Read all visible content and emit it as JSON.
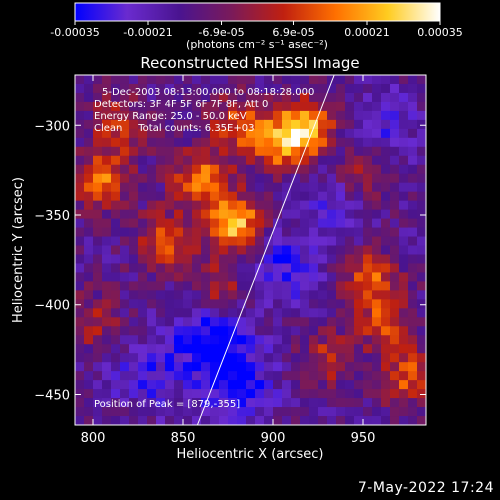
{
  "chart_data": {
    "type": "heatmap",
    "title": "Reconstructed RHESSI Image",
    "xlabel": "Heliocentric X (arcsec)",
    "ylabel": "Heliocentric Y (arcsec)",
    "xlim": [
      790,
      985
    ],
    "ylim": [
      -467,
      -272
    ],
    "xticks": [
      800,
      850,
      900,
      950
    ],
    "yticks": [
      -300,
      -350,
      -400,
      -450
    ],
    "colorbar": {
      "min": -0.00035,
      "max": 0.00035,
      "ticks": [
        -0.00035,
        -0.00021,
        -6.9e-05,
        6.9e-05,
        0.00021,
        0.00035
      ],
      "tick_labels": [
        "-0.00035",
        "-0.00021",
        "-6.9e-05",
        "6.9e-05",
        "0.00021",
        "0.00035"
      ],
      "unit_label": "(photons cm⁻² s⁻¹ asec⁻²)"
    },
    "annotations": [
      "5-Dec-2003 08:13:00.000 to 08:18:28.000",
      "Detectors: 3F 4F 5F 6F 7F 8F, Att 0",
      "Energy Range: 25.0 - 50.0 keV",
      "Clean     Total counts: 6.35E+03",
      "Position of Peak = [879,-355]"
    ],
    "limb_line": {
      "x": [
        858,
        934
      ],
      "y": [
        -467,
        -272
      ]
    },
    "peak": [
      879,
      -355
    ],
    "hot_spots": [
      {
        "x": 879,
        "y": -355,
        "amp": 1.0
      },
      {
        "x": 860,
        "y": -330,
        "amp": 0.75
      },
      {
        "x": 905,
        "y": -310,
        "amp": 0.85
      },
      {
        "x": 920,
        "y": -300,
        "amp": 0.8
      },
      {
        "x": 840,
        "y": -365,
        "amp": 0.65
      },
      {
        "x": 805,
        "y": -330,
        "amp": 0.7
      },
      {
        "x": 815,
        "y": -300,
        "amp": 0.55
      },
      {
        "x": 880,
        "y": -300,
        "amp": 0.6
      },
      {
        "x": 955,
        "y": -385,
        "amp": 0.65
      },
      {
        "x": 962,
        "y": -410,
        "amp": 0.55
      },
      {
        "x": 975,
        "y": -440,
        "amp": 0.6
      },
      {
        "x": 950,
        "y": -330,
        "amp": 0.5
      },
      {
        "x": 870,
        "y": -390,
        "amp": 0.45
      },
      {
        "x": 930,
        "y": -430,
        "amp": 0.45
      },
      {
        "x": 800,
        "y": -410,
        "amp": 0.4
      }
    ],
    "cold_spots": [
      {
        "x": 865,
        "y": -420,
        "amp": 1.0
      },
      {
        "x": 880,
        "y": -445,
        "amp": 0.9
      },
      {
        "x": 905,
        "y": -380,
        "amp": 0.7
      },
      {
        "x": 935,
        "y": -345,
        "amp": 0.6
      },
      {
        "x": 830,
        "y": -440,
        "amp": 0.55
      },
      {
        "x": 960,
        "y": -300,
        "amp": 0.5
      }
    ],
    "colormap": [
      "#0000ff",
      "#6a2bcf",
      "#4a1490",
      "#7a1a5a",
      "#c02010",
      "#ff7000",
      "#ffcc20",
      "#ffffff"
    ]
  },
  "footer": {
    "date": "7-May-2022 17:24"
  }
}
